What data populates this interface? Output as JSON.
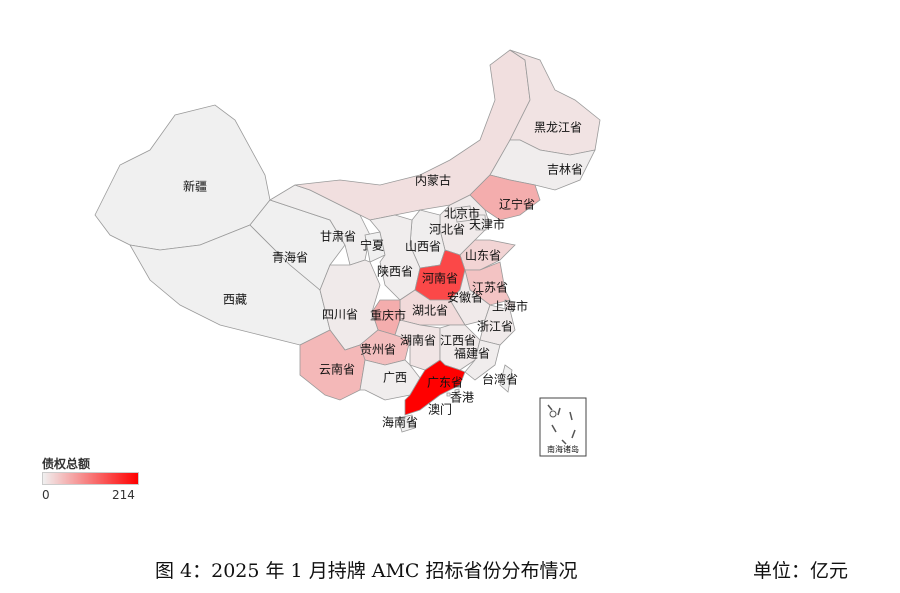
{
  "legend": {
    "title": "债权总额",
    "min": "0",
    "max": "214",
    "min_value": 0,
    "max_value": 214,
    "color_low": "#f0f0f0",
    "color_high": "#ff0000"
  },
  "caption": "图 4：2025 年 1 月持牌 AMC 招标省份分布情况",
  "unit": "单位：亿元",
  "inset_label": "南海诸岛",
  "provinces": [
    {
      "name": "新疆",
      "value": 0
    },
    {
      "name": "西藏",
      "value": 0
    },
    {
      "name": "青海省",
      "value": 0
    },
    {
      "name": "甘肃省",
      "value": 2
    },
    {
      "name": "内蒙古",
      "value": 15
    },
    {
      "name": "黑龙江省",
      "value": 12
    },
    {
      "name": "吉林省",
      "value": 3
    },
    {
      "name": "辽宁省",
      "value": 60
    },
    {
      "name": "河北省",
      "value": 5
    },
    {
      "name": "北京市",
      "value": 5
    },
    {
      "name": "天津市",
      "value": 3
    },
    {
      "name": "山西省",
      "value": 2
    },
    {
      "name": "宁夏",
      "value": 0
    },
    {
      "name": "陕西省",
      "value": 3
    },
    {
      "name": "山东省",
      "value": 25
    },
    {
      "name": "河南省",
      "value": 150
    },
    {
      "name": "江苏省",
      "value": 40
    },
    {
      "name": "安徽省",
      "value": 5
    },
    {
      "name": "上海市",
      "value": 10
    },
    {
      "name": "浙江省",
      "value": 5
    },
    {
      "name": "湖北省",
      "value": 20
    },
    {
      "name": "重庆市",
      "value": 60
    },
    {
      "name": "四川省",
      "value": 5
    },
    {
      "name": "贵州省",
      "value": 45
    },
    {
      "name": "湖南省",
      "value": 10
    },
    {
      "name": "江西省",
      "value": 5
    },
    {
      "name": "福建省",
      "value": 3
    },
    {
      "name": "云南省",
      "value": 50
    },
    {
      "name": "广西",
      "value": 3
    },
    {
      "name": "广东省",
      "value": 214
    },
    {
      "name": "海南省",
      "value": 0
    },
    {
      "name": "台湾省",
      "value": 0
    },
    {
      "name": "香港",
      "value": 0
    },
    {
      "name": "澳门",
      "value": 0
    }
  ]
}
